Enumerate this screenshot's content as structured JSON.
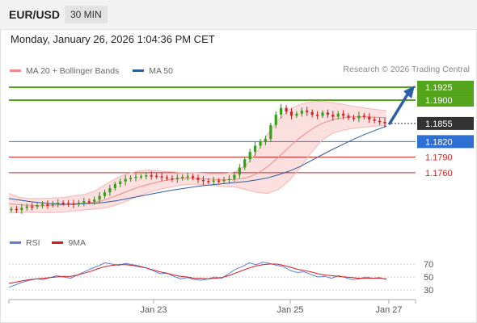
{
  "header": {
    "symbol": "EUR/USD",
    "timeframe": "30 MIN"
  },
  "datetime": "Monday, January 26, 2026 1:04:36 PM CET",
  "legend": {
    "items": [
      {
        "label": "MA 20 + Bollinger Bands",
        "color": "#f08a8a"
      },
      {
        "label": "MA 50",
        "color": "#2e5a9e"
      }
    ],
    "credit": "Research © 2026 Trading Central"
  },
  "rsi_legend": {
    "items": [
      {
        "label": "RSI",
        "color": "#5b7fd6"
      },
      {
        "label": "9MA",
        "color": "#d81b1b"
      }
    ]
  },
  "chart_data": [
    {
      "type": "line",
      "title": "EUR/USD 30 MIN",
      "ylim": [
        1.166,
        1.194
      ],
      "x_ticks": [
        "Jan 23",
        "Jan 25",
        "Jan 27"
      ],
      "current_price": {
        "label": "1.1855",
        "value": 1.1855,
        "color": "#333333"
      },
      "levels": [
        {
          "label": "1.1925",
          "value": 1.1925,
          "color": "#55a51c",
          "style": "resistance",
          "tag": "box"
        },
        {
          "label": "1.1900",
          "value": 1.19,
          "color": "#55a51c",
          "style": "resistance",
          "tag": "box"
        },
        {
          "label": "1.1820",
          "value": 1.182,
          "color": "#2e6fd3",
          "style": "pivot",
          "tag": "box"
        },
        {
          "label": "1.1790",
          "value": 1.179,
          "color": "#d82020",
          "style": "support",
          "tag": "text"
        },
        {
          "label": "1.1760",
          "value": 1.176,
          "color": "#d82020",
          "style": "support",
          "tag": "text"
        }
      ],
      "arrow": {
        "from": 1.1855,
        "to": 1.1925,
        "color": "#2d5fa8"
      },
      "series": [
        {
          "name": "Price",
          "type": "candles",
          "values": [
            1.169,
            1.1688,
            1.1692,
            1.1695,
            1.1694,
            1.1697,
            1.1699,
            1.1698,
            1.17,
            1.1702,
            1.1701,
            1.17,
            1.1699,
            1.1702,
            1.1705,
            1.1704,
            1.1708,
            1.1715,
            1.1722,
            1.173,
            1.1738,
            1.1743,
            1.1748,
            1.175,
            1.1752,
            1.1753,
            1.1755,
            1.1754,
            1.1753,
            1.1751,
            1.1749,
            1.1748,
            1.175,
            1.1752,
            1.1753,
            1.175,
            1.1746,
            1.1744,
            1.1743,
            1.1745,
            1.1744,
            1.1746,
            1.1748,
            1.1756,
            1.177,
            1.1786,
            1.18,
            1.1812,
            1.182,
            1.1825,
            1.1852,
            1.1872,
            1.1885,
            1.1878,
            1.187,
            1.1874,
            1.188,
            1.1877,
            1.1872,
            1.187,
            1.1876,
            1.1872,
            1.1868,
            1.1874,
            1.187,
            1.1866,
            1.1865,
            1.187,
            1.1868,
            1.1863,
            1.186,
            1.1858,
            1.1855
          ]
        },
        {
          "name": "MA 20",
          "type": "line",
          "color": "#f08a8a",
          "values": [
            1.17,
            1.1698,
            1.1697,
            1.1696,
            1.1697,
            1.1698,
            1.17,
            1.1701,
            1.1703,
            1.1708,
            1.1716,
            1.1724,
            1.1732,
            1.1738,
            1.1743,
            1.1747,
            1.1749,
            1.1749,
            1.1748,
            1.1747,
            1.1746,
            1.1747,
            1.175,
            1.1758,
            1.1772,
            1.179,
            1.181,
            1.1828,
            1.1843,
            1.1855,
            1.1862,
            1.1866,
            1.1868,
            1.1868,
            1.1867,
            1.1866
          ]
        },
        {
          "name": "Bollinger Upper",
          "type": "line",
          "values": [
            1.172,
            1.1712,
            1.171,
            1.171,
            1.1711,
            1.1712,
            1.1715,
            1.1718,
            1.1725,
            1.1738,
            1.175,
            1.1758,
            1.1763,
            1.1765,
            1.1763,
            1.1762,
            1.176,
            1.176,
            1.1759,
            1.1758,
            1.1758,
            1.1762,
            1.1775,
            1.18,
            1.1835,
            1.1862,
            1.1882,
            1.1892,
            1.1897,
            1.1898,
            1.1895,
            1.1892,
            1.1888,
            1.1885,
            1.1882,
            1.188
          ]
        },
        {
          "name": "Bollinger Lower",
          "type": "line",
          "values": [
            1.1682,
            1.1683,
            1.1684,
            1.1683,
            1.1683,
            1.1684,
            1.1686,
            1.1688,
            1.169,
            1.1692,
            1.1698,
            1.1706,
            1.1715,
            1.1722,
            1.1728,
            1.1732,
            1.1736,
            1.1738,
            1.1737,
            1.1735,
            1.1733,
            1.1732,
            1.1727,
            1.1722,
            1.172,
            1.1728,
            1.1745,
            1.177,
            1.1798,
            1.1822,
            1.1836,
            1.1842,
            1.1846,
            1.1848,
            1.185,
            1.1851
          ]
        },
        {
          "name": "MA 50",
          "type": "line",
          "color": "#2e5a9e",
          "values": [
            1.171,
            1.1707,
            1.1704,
            1.1702,
            1.17,
            1.1699,
            1.1699,
            1.17,
            1.1701,
            1.1703,
            1.1706,
            1.171,
            1.1714,
            1.1718,
            1.1722,
            1.1726,
            1.1729,
            1.1732,
            1.1735,
            1.1737,
            1.1739,
            1.1741,
            1.1743,
            1.1746,
            1.175,
            1.1756,
            1.1763,
            1.1772,
            1.1783,
            1.1794,
            1.1805,
            1.1815,
            1.1825,
            1.1834,
            1.1842,
            1.185
          ]
        }
      ]
    },
    {
      "type": "line",
      "title": "RSI",
      "ylim": [
        20,
        85
      ],
      "y_ticks": [
        "70",
        "50",
        "30"
      ],
      "series": [
        {
          "name": "RSI",
          "color": "#5b7fd6",
          "values": [
            34,
            38,
            42,
            45,
            47,
            46,
            49,
            52,
            50,
            48,
            53,
            58,
            63,
            67,
            72,
            70,
            68,
            71,
            69,
            67,
            64,
            60,
            55,
            56,
            51,
            47,
            49,
            46,
            45,
            47,
            50,
            48,
            55,
            62,
            66,
            72,
            69,
            73,
            71,
            68,
            66,
            60,
            57,
            58,
            54,
            50,
            51,
            48,
            52,
            49,
            46,
            47,
            50,
            48,
            49,
            46
          ]
        },
        {
          "name": "9MA",
          "color": "#d81b1b",
          "values": [
            40,
            42,
            44,
            46,
            47,
            48,
            49,
            50,
            51,
            51,
            53,
            56,
            59,
            63,
            66,
            68,
            69,
            69,
            68,
            66,
            64,
            61,
            58,
            56,
            53,
            51,
            50,
            48,
            48,
            47,
            48,
            49,
            52,
            56,
            60,
            64,
            67,
            69,
            70,
            70,
            68,
            65,
            62,
            60,
            58,
            55,
            53,
            52,
            51,
            50,
            49,
            48,
            48,
            48,
            48,
            47
          ]
        }
      ]
    }
  ]
}
